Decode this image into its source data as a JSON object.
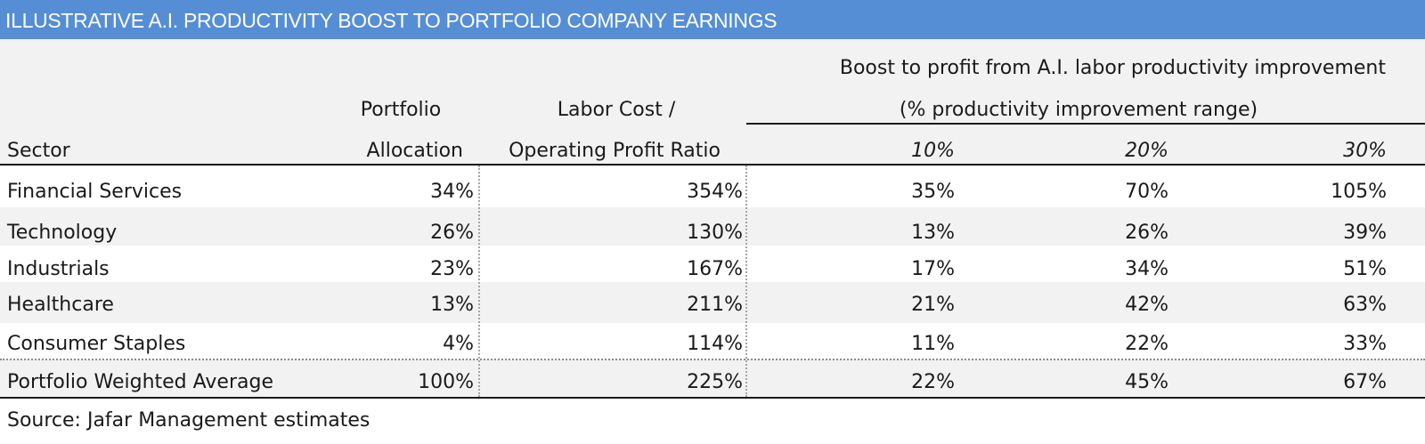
{
  "title": "ILLUSTRATIVE A.I. PRODUCTIVITY BOOST TO PORTFOLIO COMPANY EARNINGS",
  "header": {
    "sector": "Sector",
    "allocation_line1": "Portfolio",
    "allocation_line2": "Allocation",
    "ratio_line1": "Labor Cost /",
    "ratio_line2": "Operating Profit Ratio",
    "boost_line1": "Boost to profit from A.I. labor productivity improvement",
    "boost_line2": "(% productivity improvement range)",
    "pct_10": "10%",
    "pct_20": "20%",
    "pct_30": "30%"
  },
  "rows": [
    {
      "sector": "Financial Services",
      "allocation": "34%",
      "ratio": "354%",
      "b10": "35%",
      "b20": "70%",
      "b30": "105%"
    },
    {
      "sector": "Technology",
      "allocation": "26%",
      "ratio": "130%",
      "b10": "13%",
      "b20": "26%",
      "b30": "39%"
    },
    {
      "sector": "Industrials",
      "allocation": "23%",
      "ratio": "167%",
      "b10": "17%",
      "b20": "34%",
      "b30": "51%"
    },
    {
      "sector": "Healthcare",
      "allocation": "13%",
      "ratio": "211%",
      "b10": "21%",
      "b20": "42%",
      "b30": "63%"
    },
    {
      "sector": "Consumer Staples",
      "allocation": "4%",
      "ratio": "114%",
      "b10": "11%",
      "b20": "22%",
      "b30": "33%"
    }
  ],
  "total": {
    "sector": "Portfolio Weighted Average",
    "allocation": "100%",
    "ratio": "225%",
    "b10": "22%",
    "b20": "45%",
    "b30": "67%"
  },
  "source": "Source: Jafar Management estimates",
  "colors": {
    "title_bg": "#558ed5",
    "band_bg": "#f2f2f2"
  }
}
